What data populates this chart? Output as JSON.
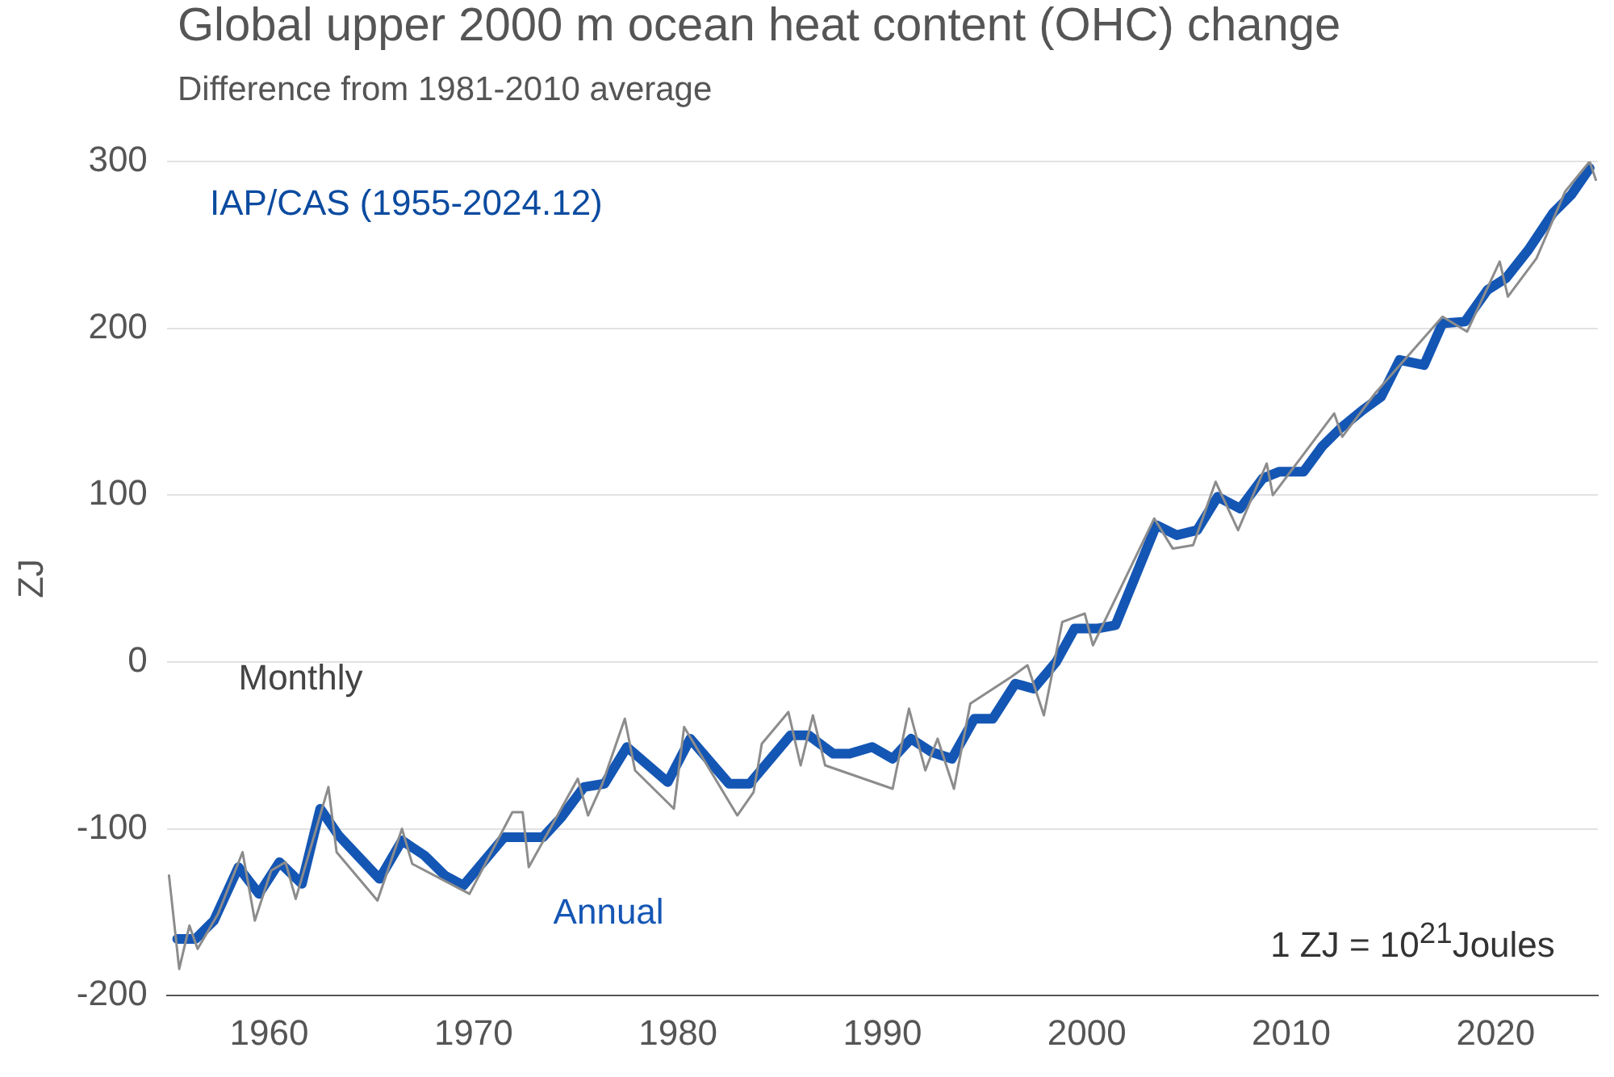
{
  "chart_data": {
    "type": "line",
    "title": "Global upper 2000 m ocean heat content (OHC) change",
    "subtitle": "Difference from 1981-2010 average",
    "ylabel": "ZJ",
    "xlim": [
      1955,
      2025
    ],
    "xticks": [
      1960,
      1970,
      1980,
      1990,
      2000,
      2010,
      2020
    ],
    "ylim": [
      -200,
      300
    ],
    "yticks": [
      -200,
      -100,
      0,
      100,
      200,
      300
    ],
    "grid": "y",
    "legend": false,
    "marker": "none",
    "line_style": "solid",
    "annotations": [
      "IAP/CAS (1955-2024.12)",
      "1 ZJ =  10$^{21}$Joules"
    ],
    "series": [
      {
        "name": "Monthly",
        "color": "#8c8c8c",
        "x": [
          1955.1,
          1955.6,
          1956.1,
          1956.5,
          1957.5,
          1958.7,
          1959.3,
          1960.1,
          1960.8,
          1961.3,
          1962.9,
          1963.3,
          1965.3,
          1966.5,
          1967.0,
          1969.8,
          1971.9,
          1972.4,
          1972.7,
          1975.1,
          1975.6,
          1976.3,
          1977.4,
          1977.9,
          1979.8,
          1980.3,
          1982.9,
          1983.7,
          1984.1,
          1985.4,
          1986.0,
          1986.6,
          1987.2,
          1990.5,
          1991.3,
          1992.1,
          1992.7,
          1993.5,
          1994.3,
          1996.3,
          1997.1,
          1997.9,
          1998.8,
          1999.9,
          2000.3,
          2003.3,
          2004.2,
          2005.2,
          2006.3,
          2007.4,
          2008.8,
          2009.1,
          2012.1,
          2012.5,
          2014.1,
          2017.4,
          2018.6,
          2020.2,
          2020.6,
          2022.0,
          2023.4,
          2024.6,
          2024.9
        ],
        "values": [
          -128,
          -184,
          -158,
          -172,
          -151,
          -114,
          -155,
          -125,
          -120,
          -142,
          -75,
          -114,
          -143,
          -100,
          -121,
          -139,
          -90,
          -90,
          -123,
          -70,
          -92,
          -73,
          -34,
          -65,
          -88,
          -39,
          -92,
          -78,
          -49,
          -30,
          -62,
          -32,
          -62,
          -76,
          -28,
          -65,
          -46,
          -76,
          -25,
          -9,
          -2,
          -32,
          24,
          29,
          10,
          86,
          68,
          70,
          108,
          79,
          119,
          100,
          149,
          135,
          161,
          207,
          198,
          240,
          219,
          242,
          282,
          300,
          289
        ]
      },
      {
        "name": "Annual",
        "color": "#1456b4",
        "x": [
          1955.5,
          1956.4,
          1957.3,
          1958.5,
          1959.5,
          1960.5,
          1961.6,
          1962.5,
          1963.4,
          1965.4,
          1966.5,
          1967.6,
          1968.6,
          1969.5,
          1971.5,
          1973.4,
          1974.3,
          1975.4,
          1976.4,
          1977.5,
          1979.5,
          1980.6,
          1982.5,
          1983.5,
          1985.5,
          1986.4,
          1987.6,
          1988.4,
          1989.5,
          1990.5,
          1991.4,
          1992.4,
          1993.4,
          1994.5,
          1995.4,
          1996.5,
          1997.4,
          1998.5,
          1999.4,
          2000.5,
          2001.4,
          2003.4,
          2004.4,
          2005.4,
          2006.4,
          2007.5,
          2008.6,
          2009.4,
          2010.6,
          2011.5,
          2012.4,
          2013.5,
          2014.4,
          2015.3,
          2016.5,
          2017.4,
          2018.5,
          2019.6,
          2020.5,
          2021.6,
          2022.8,
          2023.7,
          2024.6
        ],
        "values": [
          -166,
          -166,
          -155,
          -123,
          -139,
          -120,
          -133,
          -88,
          -104,
          -130,
          -107,
          -116,
          -128,
          -134,
          -105,
          -105,
          -93,
          -75,
          -73,
          -51,
          -72,
          -46,
          -73,
          -73,
          -44,
          -44,
          -55,
          -55,
          -51,
          -58,
          -46,
          -54,
          -58,
          -34,
          -34,
          -13,
          -16,
          0,
          20,
          20,
          22,
          82,
          76,
          79,
          99,
          92,
          110,
          114,
          114,
          129,
          140,
          151,
          159,
          181,
          178,
          203,
          204,
          223,
          230,
          247,
          269,
          280,
          296
        ]
      }
    ]
  }
}
